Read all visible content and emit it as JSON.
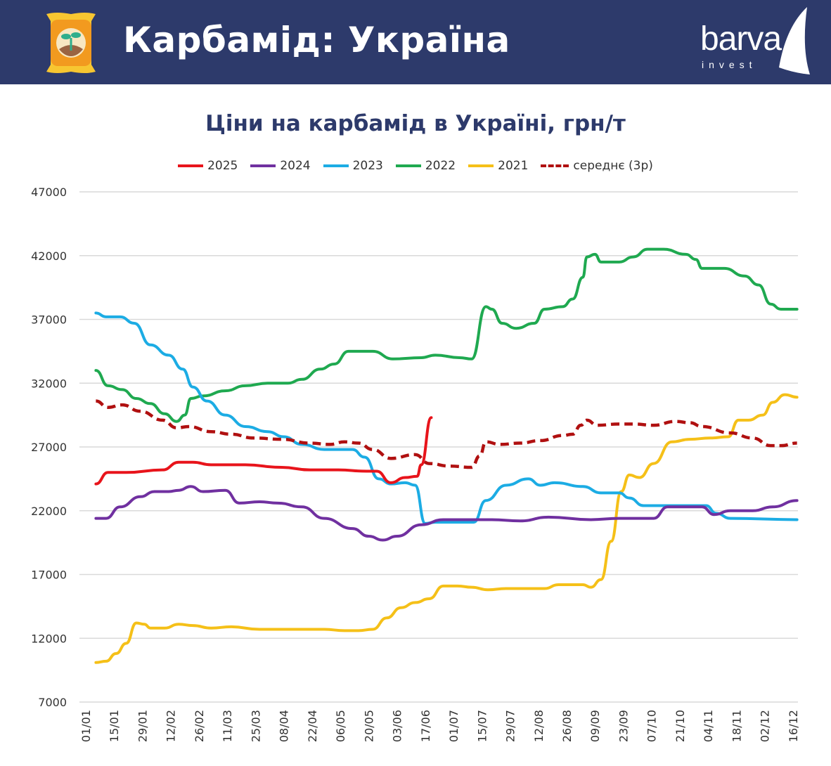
{
  "header": {
    "title": "Карбамід: Україна",
    "logo_text": "barva",
    "logo_sub": "invest"
  },
  "colors": {
    "header_bg": "#2d3a6b",
    "2025": "#e8141b",
    "2024": "#7030a0",
    "2023": "#1cace4",
    "2022": "#1fa950",
    "2021": "#f5c018",
    "avg": "#b01010"
  },
  "chart_data": {
    "type": "line",
    "title": "Ціни на карбамід в Україні, грн/т",
    "xlabel": "",
    "ylabel": "",
    "x_unit": "day of year",
    "xlim": [
      -3,
      352
    ],
    "ylim": [
      7000,
      47000
    ],
    "yticks": [
      "47000",
      "42000",
      "37000",
      "32000",
      "27000",
      "22000",
      "17000",
      "12000",
      "7000"
    ],
    "ytick_values": [
      47000,
      42000,
      37000,
      32000,
      27000,
      22000,
      17000,
      12000,
      7000
    ],
    "xticks": [
      "01/01",
      "15/01",
      "29/01",
      "12/02",
      "26/02",
      "11/03",
      "25/03",
      "08/04",
      "22/04",
      "06/05",
      "20/05",
      "03/06",
      "17/06",
      "01/07",
      "15/07",
      "29/07",
      "12/08",
      "26/08",
      "09/09",
      "23/09",
      "07/10",
      "21/10",
      "04/11",
      "18/11",
      "02/12",
      "16/12"
    ],
    "grid": true,
    "legend_position": "top-center",
    "series": [
      {
        "name": "2025",
        "key": "2025",
        "dashed": false,
        "x": [
          5,
          11,
          20,
          38,
          46,
          53,
          62,
          79,
          97,
          111,
          125,
          139,
          144,
          151,
          158,
          164,
          166,
          171
        ],
        "y": [
          24100,
          25000,
          25000,
          25200,
          25800,
          25800,
          25600,
          25600,
          25400,
          25200,
          25200,
          25100,
          25100,
          24200,
          24600,
          24700,
          25600,
          29300
        ]
      },
      {
        "name": "2024",
        "key": "2024",
        "dashed": false,
        "x": [
          5,
          10,
          17,
          27,
          34,
          41,
          46,
          52,
          58,
          69,
          76,
          86,
          95,
          107,
          118,
          132,
          140,
          147,
          154,
          166,
          177,
          201,
          215,
          229,
          250,
          264,
          281,
          288,
          305,
          311,
          319,
          330,
          340,
          352
        ],
        "y": [
          21400,
          21400,
          22300,
          23100,
          23500,
          23500,
          23600,
          23900,
          23500,
          23600,
          22600,
          22700,
          22600,
          22300,
          21400,
          20600,
          20000,
          19700,
          20000,
          20900,
          21300,
          21300,
          21200,
          21500,
          21300,
          21400,
          21400,
          22300,
          22300,
          21700,
          22000,
          22000,
          22300,
          22800
        ]
      },
      {
        "name": "2023",
        "key": "2023",
        "dashed": false,
        "x": [
          5,
          10,
          17,
          24,
          32,
          41,
          48,
          53,
          60,
          69,
          79,
          90,
          98,
          107,
          118,
          132,
          138,
          145,
          151,
          158,
          163,
          168,
          173,
          187,
          192,
          198,
          208,
          219,
          225,
          232,
          246,
          255,
          264,
          269,
          276,
          292,
          307,
          312,
          319,
          352
        ],
        "y": [
          37500,
          37200,
          37200,
          36700,
          35000,
          34200,
          33100,
          31700,
          30600,
          29500,
          28600,
          28200,
          27800,
          27200,
          26800,
          26800,
          26200,
          24500,
          24100,
          24200,
          24000,
          21000,
          21100,
          21100,
          21100,
          22800,
          24000,
          24500,
          24000,
          24200,
          23900,
          23400,
          23400,
          23000,
          22400,
          22400,
          22400,
          21800,
          21400,
          21300
        ]
      },
      {
        "name": "2022",
        "key": "2022",
        "dashed": false,
        "x": [
          5,
          11,
          18,
          25,
          32,
          39,
          45,
          49,
          52,
          58,
          69,
          79,
          90,
          100,
          107,
          116,
          123,
          130,
          142,
          152,
          166,
          173,
          185,
          191,
          198,
          201,
          206,
          213,
          222,
          227,
          236,
          241,
          246,
          248,
          252,
          255,
          264,
          271,
          278,
          286,
          297,
          302,
          305,
          316,
          326,
          333,
          339,
          344,
          352
        ],
        "y": [
          33000,
          31800,
          31500,
          30800,
          30400,
          29600,
          29000,
          29500,
          30800,
          31000,
          31400,
          31800,
          32000,
          32000,
          32300,
          33100,
          33500,
          34500,
          34500,
          33900,
          34000,
          34200,
          34000,
          33900,
          38000,
          37800,
          36700,
          36300,
          36700,
          37800,
          38000,
          38600,
          40300,
          41900,
          42100,
          41500,
          41500,
          41900,
          42500,
          42500,
          42100,
          41700,
          41000,
          41000,
          40400,
          39700,
          38200,
          37800,
          37800
        ]
      },
      {
        "name": "2021",
        "key": "2021",
        "dashed": false,
        "x": [
          5,
          10,
          15,
          20,
          25,
          29,
          32,
          39,
          46,
          53,
          62,
          72,
          86,
          104,
          118,
          128,
          135,
          142,
          149,
          156,
          163,
          170,
          177,
          184,
          191,
          199,
          208,
          222,
          227,
          234,
          246,
          250,
          255,
          260,
          265,
          269,
          274,
          281,
          290,
          299,
          309,
          318,
          323,
          328,
          335,
          340,
          346,
          352
        ],
        "y": [
          10100,
          10200,
          10800,
          11600,
          13200,
          13100,
          12800,
          12800,
          13100,
          13000,
          12800,
          12900,
          12700,
          12700,
          12700,
          12600,
          12600,
          12700,
          13600,
          14400,
          14800,
          15100,
          16100,
          16100,
          16000,
          15800,
          15900,
          15900,
          15900,
          16200,
          16200,
          16000,
          16600,
          19600,
          23500,
          24800,
          24600,
          25700,
          27400,
          27600,
          27700,
          27800,
          29100,
          29100,
          29500,
          30500,
          31100,
          30900
        ]
      },
      {
        "name": "середнє (3р)",
        "key": "avg",
        "dashed": true,
        "x": [
          5,
          11,
          18,
          27,
          38,
          45,
          51,
          62,
          72,
          83,
          97,
          111,
          121,
          128,
          135,
          142,
          151,
          163,
          170,
          180,
          191,
          195,
          198,
          205,
          215,
          225,
          236,
          241,
          245,
          248,
          253,
          264,
          271,
          281,
          292,
          299,
          305,
          319,
          330,
          339,
          344,
          352
        ],
        "y": [
          30600,
          30100,
          30300,
          29800,
          29100,
          28500,
          28600,
          28200,
          28000,
          27700,
          27600,
          27300,
          27200,
          27400,
          27300,
          26800,
          26100,
          26400,
          25700,
          25500,
          25400,
          26300,
          27400,
          27200,
          27300,
          27500,
          27900,
          28000,
          28700,
          29100,
          28700,
          28800,
          28800,
          28700,
          29000,
          28900,
          28600,
          28100,
          27700,
          27100,
          27100,
          27300
        ]
      }
    ]
  }
}
